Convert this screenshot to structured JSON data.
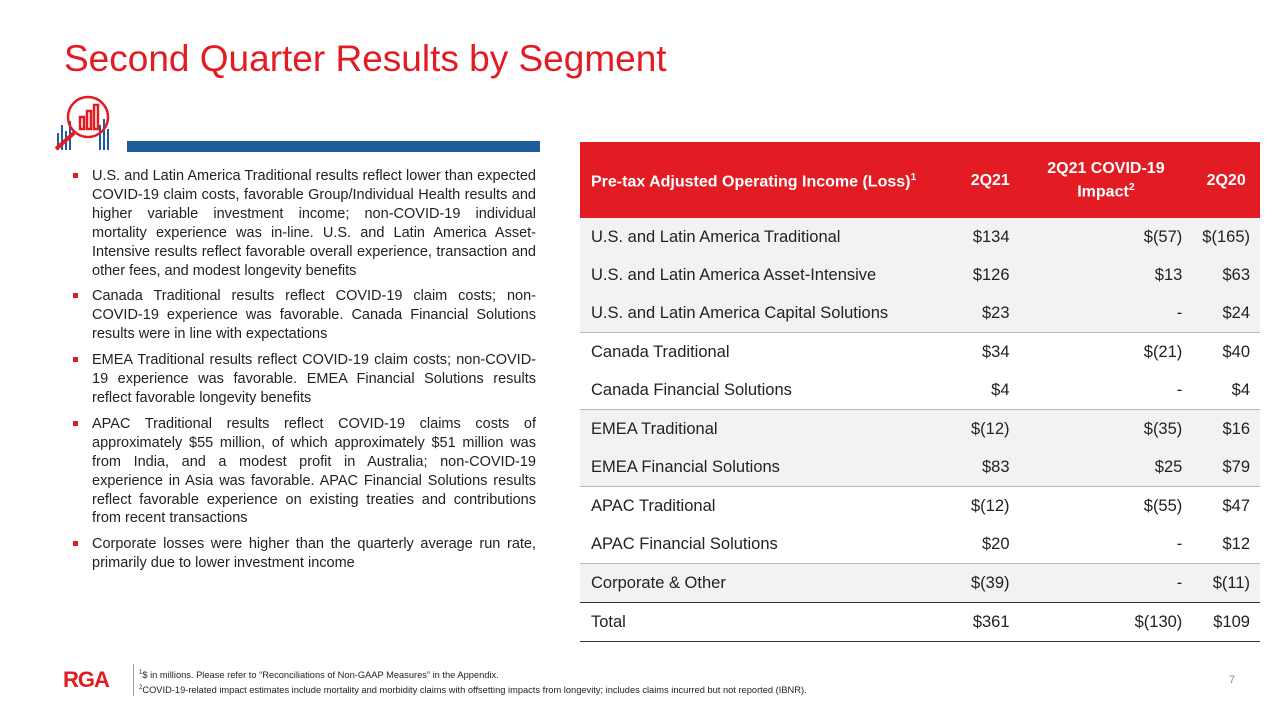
{
  "title": "Second Quarter Results by Segment",
  "bullets": [
    "U.S. and Latin America Traditional results reflect lower than expected COVID-19 claim costs, favorable Group/Individual Health results and higher variable investment income; non-COVID-19 individual mortality experience was in-line. U.S. and Latin America Asset-Intensive results reflect favorable overall experience, transaction and other fees, and modest longevity benefits",
    "Canada Traditional results reflect COVID-19 claim costs; non-COVID-19 experience was favorable. Canada Financial Solutions results were in line with expectations",
    "EMEA Traditional results reflect COVID-19 claim costs; non-COVID-19 experience was favorable. EMEA Financial Solutions results reflect favorable longevity benefits",
    "APAC Traditional results reflect COVID-19 claims costs of approximately $55 million, of which approximately $51 million was from India, and a modest profit in Australia; non-COVID-19 experience in Asia was favorable. APAC Financial Solutions results reflect favorable experience on existing treaties and contributions from recent transactions",
    "Corporate losses were higher than the quarterly average run rate, primarily due to lower investment income"
  ],
  "table": {
    "header": [
      {
        "text": "Pre-tax Adjusted Operating Income (Loss)",
        "sup": "1"
      },
      {
        "text": "2Q21"
      },
      {
        "text": "2Q21 COVID-19 Impact",
        "sup": "2"
      },
      {
        "text": "2Q20"
      }
    ],
    "groups": [
      {
        "rows": [
          [
            "U.S. and Latin America Traditional",
            "$134",
            "$(57)",
            "$(165)"
          ],
          [
            "U.S. and Latin America Asset-Intensive",
            "$126",
            "$13",
            "$63"
          ],
          [
            "U.S. and Latin America Capital Solutions",
            "$23",
            "-",
            "$24"
          ]
        ]
      },
      {
        "rows": [
          [
            "Canada Traditional",
            "$34",
            "$(21)",
            "$40"
          ],
          [
            "Canada Financial Solutions",
            "$4",
            "-",
            "$4"
          ]
        ]
      },
      {
        "rows": [
          [
            "EMEA Traditional",
            "$(12)",
            "$(35)",
            "$16"
          ],
          [
            "EMEA Financial Solutions",
            "$83",
            "$25",
            "$79"
          ]
        ]
      },
      {
        "rows": [
          [
            "APAC Traditional",
            "$(12)",
            "$(55)",
            "$47"
          ],
          [
            "APAC Financial Solutions",
            "$20",
            "-",
            "$12"
          ]
        ]
      },
      {
        "rows": [
          [
            "Corporate & Other",
            "$(39)",
            "-",
            "$(11)"
          ]
        ]
      },
      {
        "rows": [
          [
            "Total",
            "$361",
            "$(130)",
            "$109"
          ]
        ]
      }
    ]
  },
  "footnotes": [
    {
      "sup": "1",
      "text": "$ in millions. Please refer to “Reconciliations of Non-GAAP Measures” in the Appendix."
    },
    {
      "sup": "2",
      "text": "COVID-19-related impact estimates include mortality and morbidity claims with offsetting impacts from longevity; includes claims incurred but not reported (IBNR)."
    }
  ],
  "logo": "RGA",
  "page_number": "7"
}
